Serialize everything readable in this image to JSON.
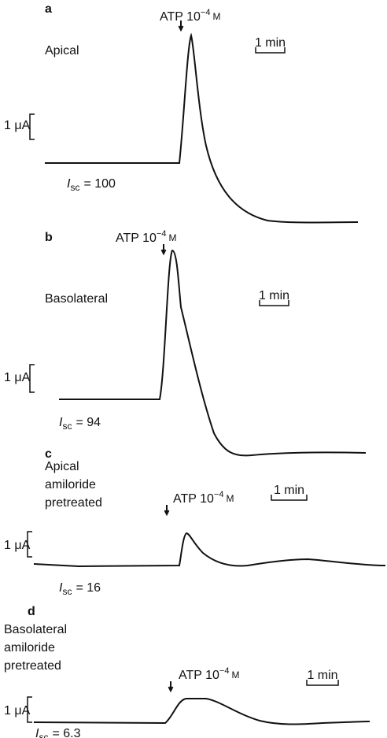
{
  "panels": [
    {
      "letter": "a",
      "location": [
        "Apical"
      ],
      "stimulus": "ATP 10",
      "exponent": "−4",
      "unit": "M",
      "time_scale": "1 min",
      "current_scale": "1 μA",
      "isc_symbol": "I",
      "isc_subscript": "sc",
      "isc": "= 100"
    },
    {
      "letter": "b",
      "location": [
        "Basolateral"
      ],
      "stimulus": "ATP 10",
      "exponent": "−4",
      "unit": "M",
      "time_scale": "1 min",
      "current_scale": "1 μA",
      "isc_symbol": "I",
      "isc_subscript": "sc",
      "isc": "= 94"
    },
    {
      "letter": "c",
      "location": [
        "Apical",
        "amiloride",
        "pretreated"
      ],
      "stimulus": "ATP 10",
      "exponent": "−4",
      "unit": "M",
      "time_scale": "1 min",
      "current_scale": "1 μA",
      "isc_symbol": "I",
      "isc_subscript": "sc",
      "isc": "= 16"
    },
    {
      "letter": "d",
      "location": [
        "Basolateral",
        "amiloride",
        "pretreated"
      ],
      "stimulus": "ATP 10",
      "exponent": "−4",
      "unit": "M",
      "time_scale": "1 min",
      "current_scale": "1 μA",
      "isc_symbol": "I",
      "isc_subscript": "sc",
      "isc": "= 6.3"
    }
  ]
}
